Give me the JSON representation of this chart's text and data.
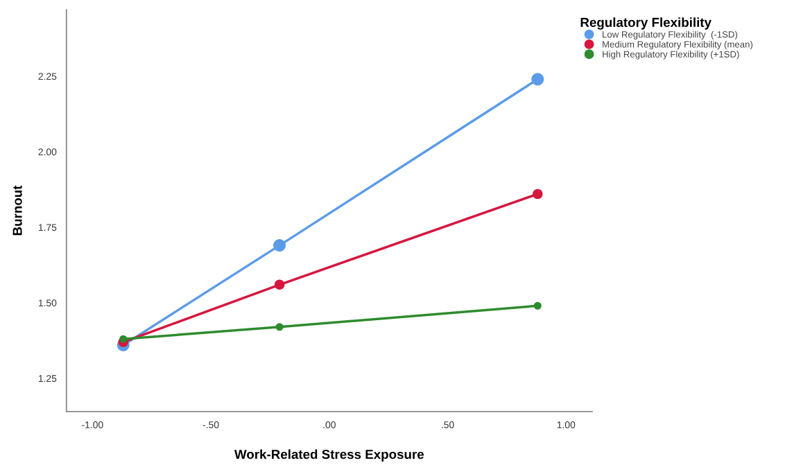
{
  "chart_data": {
    "type": "line",
    "xlabel": "Work-Related Stress Exposure",
    "ylabel": "Burnout",
    "legend_title": "Regulatory Flexibility",
    "x": [
      -0.87,
      -0.21,
      0.88
    ],
    "series": [
      {
        "name": "Low Regulatory Flexibility  (-1SD)",
        "color": "#5b9be8",
        "values": [
          1.36,
          1.69,
          2.24
        ]
      },
      {
        "name": "Medium Regulatory Flexibility (mean)",
        "color": "#d6163f",
        "values": [
          1.37,
          1.56,
          1.86
        ]
      },
      {
        "name": "High Regulatory Flexibility (+1SD)",
        "color": "#2e8b2e",
        "values": [
          1.38,
          1.42,
          1.49
        ]
      }
    ],
    "xlim": [
      -1.11,
      1.11
    ],
    "ylim": [
      1.14,
      2.47
    ],
    "xticks": [
      {
        "value": -1,
        "label": "-1.00"
      },
      {
        "value": -0.5,
        "label": "-.50"
      },
      {
        "value": 0,
        "label": ".00"
      },
      {
        "value": 0.5,
        "label": ".50"
      },
      {
        "value": 1,
        "label": "1.00"
      }
    ],
    "yticks": [
      {
        "value": 1.25,
        "label": "1.25"
      },
      {
        "value": 1.5,
        "label": "1.50"
      },
      {
        "value": 1.75,
        "label": "1.75"
      },
      {
        "value": 2.0,
        "label": "2.00"
      },
      {
        "value": 2.25,
        "label": "2.25"
      }
    ],
    "marker": "circle",
    "line_style": "solid",
    "grid": false,
    "legend": "top right"
  }
}
